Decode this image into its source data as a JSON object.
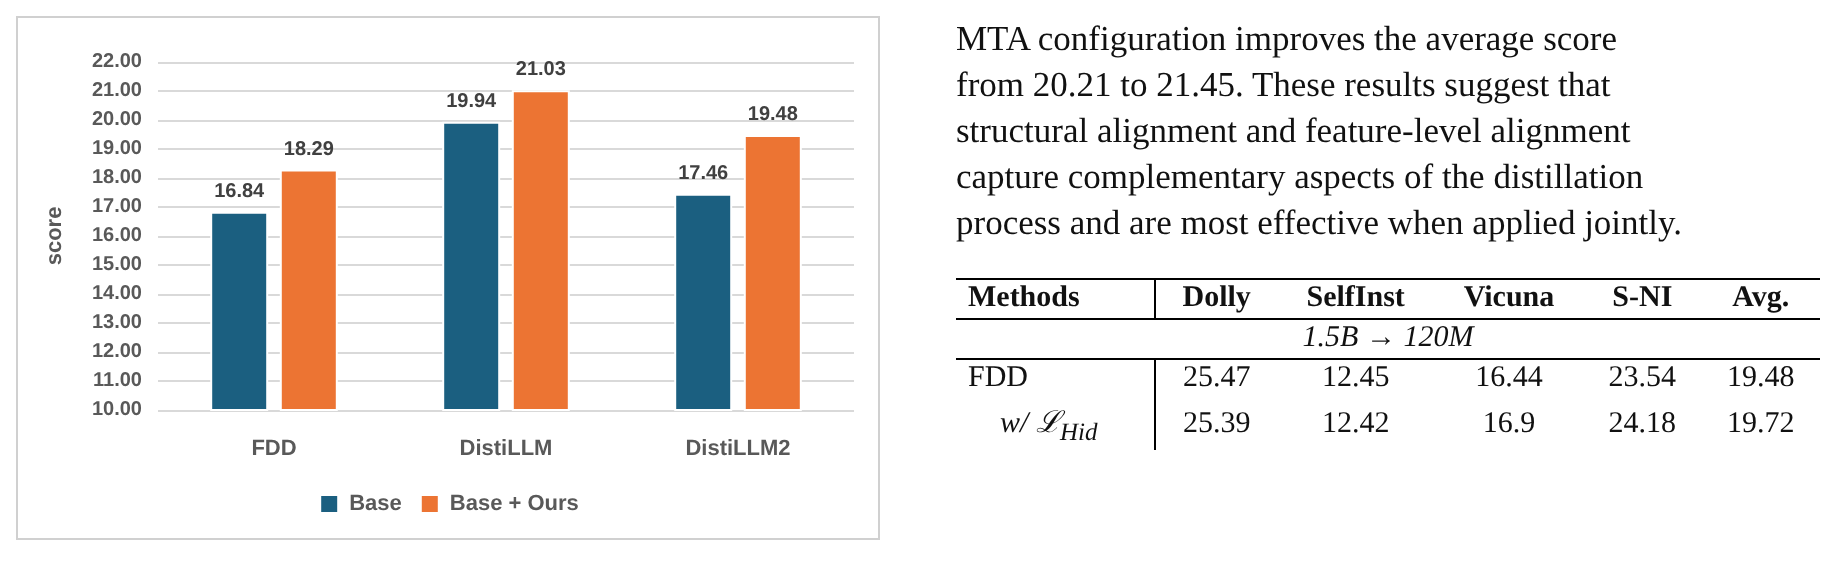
{
  "chart_data": [
    {
      "type": "bar",
      "ylabel": "score",
      "categories": [
        "FDD",
        "DistiLLM",
        "DistiLLM2"
      ],
      "series": [
        {
          "name": "Base",
          "color": "#1b5f80",
          "values": [
            16.84,
            19.94,
            17.46
          ]
        },
        {
          "name": "Base + Ours",
          "color": "#ec7433",
          "values": [
            18.29,
            21.03,
            19.48
          ]
        }
      ],
      "ylim": [
        10,
        22
      ],
      "yticks": [
        {
          "value": 10,
          "label": "10.00"
        },
        {
          "value": 11,
          "label": "11.00"
        },
        {
          "value": 12,
          "label": "12.00"
        },
        {
          "value": 13,
          "label": "13.00"
        },
        {
          "value": 14,
          "label": "14.00"
        },
        {
          "value": 15,
          "label": "15.00"
        },
        {
          "value": 16,
          "label": "16.00"
        },
        {
          "value": 17,
          "label": "17.00"
        },
        {
          "value": 18,
          "label": "18.00"
        },
        {
          "value": 19,
          "label": "19.00"
        },
        {
          "value": 20,
          "label": "20.00"
        },
        {
          "value": 21,
          "label": "21.00"
        },
        {
          "value": 22,
          "label": "22.00"
        }
      ],
      "grid": "y",
      "legend": "bottom",
      "data_labels": true
    },
    {
      "type": "other",
      "annotations": [
        "MTA configuration improves the average score",
        "from 20.21 to 21.45.  These results suggest that",
        "structural alignment and feature-level alignment",
        "capture complementary aspects of the distillation",
        "process and are most effective when applied jointly.",
        "Methods",
        "Dolly",
        "SelfInst",
        "Vicuna",
        "S-NI",
        "Avg.",
        "1.5B → 120M",
        "FDD",
        "25.47",
        "12.45",
        "16.44",
        "23.54",
        "19.48",
        "w/ ℒ$_{Hid}$",
        "25.39",
        "12.42",
        "16.9",
        "24.18",
        "19.72"
      ]
    }
  ]
}
